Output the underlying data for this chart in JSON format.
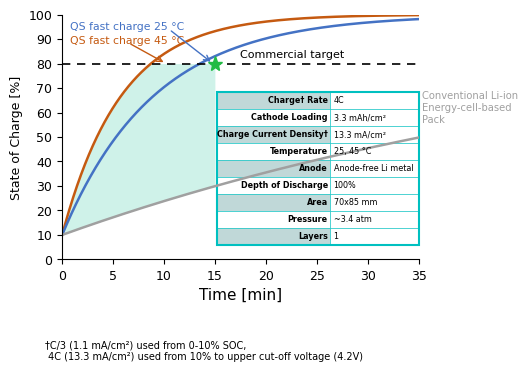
{
  "xlabel": "Time [min]",
  "ylabel": "State of Charge [%]",
  "xlim": [
    0,
    35
  ],
  "ylim": [
    0,
    100
  ],
  "xticks": [
    0,
    5,
    10,
    15,
    20,
    25,
    30,
    35
  ],
  "yticks": [
    0,
    10,
    20,
    30,
    40,
    50,
    60,
    70,
    80,
    90,
    100
  ],
  "commercial_target_y": 80,
  "commercial_target_label": "Commercial target",
  "star_x": 15.0,
  "star_y": 80,
  "legend_25": "QS fast charge 25 °C",
  "legend_45": "QS fast charge 45 °C",
  "legend_conv": "Conventional Li-ion\nEnergy-cell-based\nPack",
  "color_25": "#4472C4",
  "color_45": "#C55A11",
  "color_conv": "#A0A0A0",
  "color_fill": "#A8E8D8",
  "fill_alpha": 0.55,
  "footnote": "†C/3 (1.1 mA/cm²) used from 0-10% SOC,\n 4C (13.3 mA/cm²) used from 10% to upper cut-off voltage (4.2V)",
  "table_rows": [
    [
      "Charge† Rate",
      "4C"
    ],
    [
      "Cathode Loading",
      "3.3 mAh/cm²"
    ],
    [
      "Charge Current Density†",
      "13.3 mA/cm²"
    ],
    [
      "Temperature",
      "25, 45 °C"
    ],
    [
      "Anode",
      "Anode-free Li metal"
    ],
    [
      "Depth of Discharge",
      "100%"
    ],
    [
      "Area",
      "70x85 mm"
    ],
    [
      "Pressure",
      "~3.4 atm"
    ],
    [
      "Layers",
      "1"
    ]
  ],
  "table_color_odd": "#C0D8D8",
  "table_border_color": "#00C0C0",
  "soc45_tau": 5.8,
  "soc25_tau": 9.0,
  "soc_conv_tau": 60.0,
  "soc_start": 10
}
